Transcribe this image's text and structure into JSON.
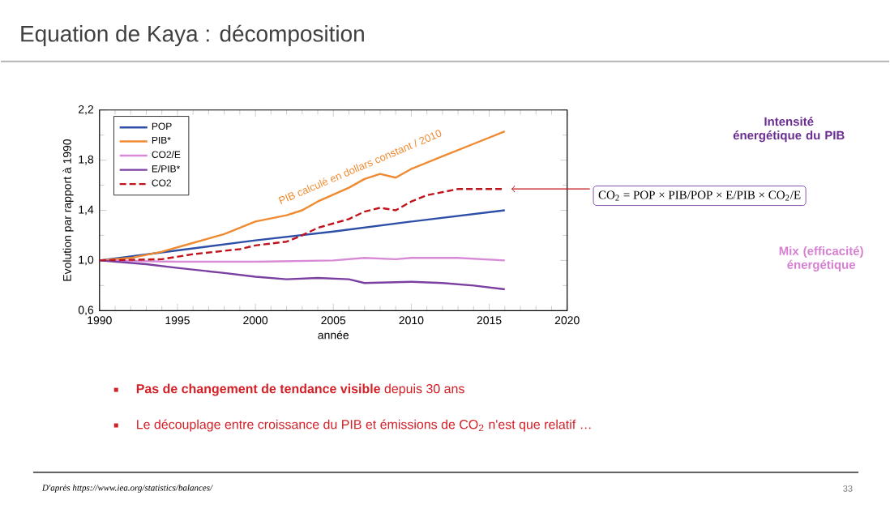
{
  "chart_data": {
    "type": "line",
    "title": "Equation de Kaya : décomposition",
    "xlabel": "année",
    "ylabel": "Evolution par rapport à 1990",
    "xlim": [
      1990,
      2020
    ],
    "xticks": [
      1990,
      1995,
      2000,
      2005,
      2010,
      2015,
      2020
    ],
    "ylim": [
      0.6,
      2.2
    ],
    "yticks": [
      {
        "value": 0.6,
        "label": "0,6"
      },
      {
        "value": 1.0,
        "label": "1,0"
      },
      {
        "value": 1.4,
        "label": "1,4"
      },
      {
        "value": 1.8,
        "label": "1,8"
      },
      {
        "value": 2.2,
        "label": "2,2"
      }
    ],
    "legend": "top left",
    "marker": "none",
    "grid": false,
    "series": [
      {
        "name": "POP",
        "color": "#2e4fa8",
        "line_style": "solid",
        "x": [
          1990,
          1995,
          2000,
          2005,
          2010,
          2016
        ],
        "values": [
          1.0,
          1.08,
          1.16,
          1.23,
          1.31,
          1.4
        ]
      },
      {
        "name": "PIB*",
        "color": "#f08a30",
        "line_style": "solid",
        "x": [
          1990,
          1992,
          1994,
          1996,
          1998,
          2000,
          2002,
          2003,
          2004,
          2006,
          2007,
          2008,
          2009,
          2010,
          2012,
          2014,
          2016
        ],
        "values": [
          1.0,
          1.02,
          1.07,
          1.14,
          1.21,
          1.31,
          1.36,
          1.4,
          1.47,
          1.58,
          1.65,
          1.69,
          1.66,
          1.73,
          1.83,
          1.93,
          2.03
        ]
      },
      {
        "name": "CO2/E",
        "color": "#d98ad6",
        "line_style": "solid",
        "x": [
          1990,
          1995,
          2000,
          2005,
          2007,
          2009,
          2010,
          2013,
          2016
        ],
        "values": [
          1.0,
          0.99,
          0.99,
          1.0,
          1.02,
          1.01,
          1.02,
          1.02,
          1.0
        ]
      },
      {
        "name": "E/PIB*",
        "color": "#7a3fa0",
        "line_style": "solid",
        "x": [
          1990,
          1993,
          1995,
          1998,
          2000,
          2002,
          2004,
          2006,
          2007,
          2010,
          2012,
          2014,
          2016
        ],
        "values": [
          1.0,
          0.97,
          0.94,
          0.9,
          0.87,
          0.85,
          0.86,
          0.85,
          0.82,
          0.83,
          0.82,
          0.8,
          0.77
        ]
      },
      {
        "name": "CO2",
        "color": "#c0141c",
        "line_style": "dashed",
        "x": [
          1990,
          1994,
          1996,
          1999,
          2000,
          2002,
          2003,
          2004,
          2006,
          2007,
          2008,
          2009,
          2010,
          2011,
          2013,
          2014,
          2016
        ],
        "values": [
          1.0,
          1.01,
          1.05,
          1.09,
          1.12,
          1.15,
          1.2,
          1.26,
          1.33,
          1.39,
          1.42,
          1.4,
          1.47,
          1.52,
          1.57,
          1.57,
          1.57
        ]
      }
    ],
    "annotations": [
      "PIB calculé en dollars constant  / 2010",
      "CO$_{2}$ = POP × PIB/POP × E/PIB × CO$_{2}$/E",
      "Intensité énergétique du PIB",
      "Mix (efficacité) énergétique",
      "**Pas de changement de tendance visible** depuis 30 ans",
      "Le découplage entre croissance du PIB et émissions de CO$_{2}$ n'est que relatif …",
      "D'après https://www.iea.org/statistics/balances/",
      "33"
    ]
  }
}
